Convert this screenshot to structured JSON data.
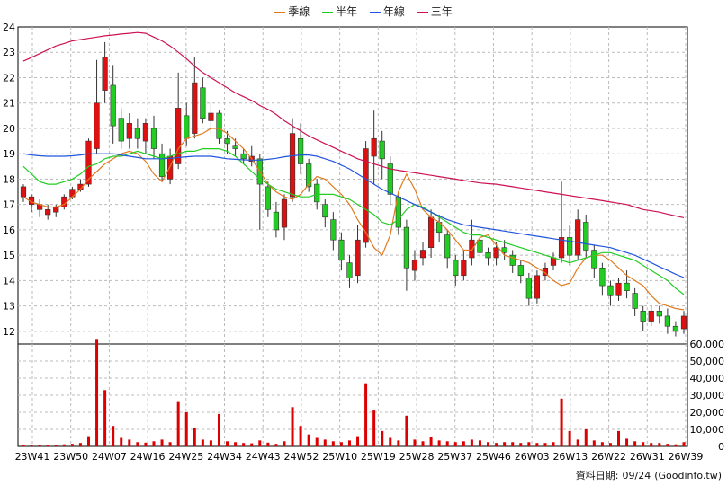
{
  "legend": [
    {
      "name": "季線",
      "color": "#e07a20"
    },
    {
      "name": "半年",
      "color": "#22cc22"
    },
    {
      "name": "年線",
      "color": "#2255dd"
    },
    {
      "name": "三年",
      "color": "#cc1155"
    }
  ],
  "footer": {
    "label": "資料日期:",
    "date": "09/24",
    "source": "(Goodinfo.tw)"
  },
  "chart_data": [
    {
      "type": "line",
      "title": "",
      "xlabel": "",
      "ylabel": "",
      "ylim": [
        11.5,
        24
      ],
      "grid": true,
      "legend_position": "top-center",
      "y_ticks": [
        12,
        13,
        14,
        15,
        16,
        17,
        18,
        19,
        20,
        21,
        22,
        23,
        24
      ],
      "x_ticks": [
        "23W41",
        "23W50",
        "24W07",
        "24W16",
        "24W25",
        "24W34",
        "24W43",
        "24W52",
        "25W10",
        "25W19",
        "25W28",
        "25W37",
        "25W46",
        "26W03",
        "26W13",
        "26W22",
        "26W31",
        "26W39"
      ],
      "series": [
        {
          "name": "季線",
          "color": "#e07a20",
          "values": [
            17.3,
            17.1,
            17.0,
            16.9,
            16.9,
            17.0,
            17.3,
            17.6,
            18.0,
            18.3,
            18.6,
            18.8,
            19.0,
            19.1,
            19.0,
            18.7,
            18.2,
            17.9,
            18.5,
            19.2,
            19.6,
            19.7,
            19.8,
            20.0,
            20.0,
            19.8,
            19.5,
            19.2,
            18.8,
            18.3,
            17.8,
            17.5,
            17.3,
            17.2,
            17.4,
            17.8,
            18.1,
            18.0,
            17.7,
            17.4,
            17.0,
            16.4,
            15.9,
            15.3,
            15.0,
            15.8,
            17.5,
            18.2,
            17.6,
            16.8,
            16.5,
            16.3,
            16.0,
            15.6,
            15.2,
            15.2,
            15.7,
            15.8,
            15.4,
            15.0,
            14.9,
            14.8,
            14.7,
            14.5,
            14.3,
            14.0,
            13.8,
            13.9,
            14.5,
            14.9,
            15.0,
            15.0,
            14.8,
            14.5,
            14.2,
            14.0,
            13.8,
            13.4,
            13.1,
            13.0,
            12.9,
            12.85
          ]
        },
        {
          "name": "半年",
          "color": "#22cc22",
          "values": [
            18.5,
            18.2,
            17.9,
            17.8,
            17.8,
            17.9,
            18.0,
            18.2,
            18.5,
            18.6,
            18.8,
            18.9,
            18.9,
            19.0,
            19.1,
            19.0,
            18.9,
            18.8,
            18.9,
            19.0,
            19.1,
            19.1,
            19.2,
            19.2,
            19.2,
            19.1,
            18.9,
            18.6,
            18.3,
            18.0,
            17.8,
            17.6,
            17.5,
            17.4,
            17.3,
            17.3,
            17.4,
            17.4,
            17.4,
            17.3,
            17.2,
            17.0,
            16.8,
            16.6,
            16.3,
            16.2,
            16.4,
            16.8,
            17.0,
            16.9,
            16.7,
            16.5,
            16.3,
            16.1,
            15.9,
            15.8,
            15.8,
            15.7,
            15.6,
            15.5,
            15.4,
            15.3,
            15.2,
            15.1,
            15.0,
            14.9,
            14.8,
            14.7,
            14.8,
            14.9,
            15.0,
            15.1,
            15.1,
            15.0,
            14.9,
            14.8,
            14.6,
            14.4,
            14.2,
            14.0,
            13.7,
            13.45
          ]
        },
        {
          "name": "年線",
          "color": "#2255dd",
          "values": [
            19.0,
            18.95,
            18.92,
            18.9,
            18.9,
            18.9,
            18.92,
            18.95,
            19.0,
            19.0,
            19.0,
            19.0,
            18.95,
            18.9,
            18.85,
            18.8,
            18.8,
            18.8,
            18.82,
            18.85,
            18.88,
            18.9,
            18.9,
            18.9,
            18.85,
            18.8,
            18.78,
            18.76,
            18.75,
            18.75,
            18.78,
            18.82,
            18.88,
            18.92,
            18.95,
            18.95,
            18.9,
            18.8,
            18.7,
            18.55,
            18.4,
            18.2,
            18.0,
            17.8,
            17.6,
            17.45,
            17.3,
            17.15,
            17.0,
            16.85,
            16.7,
            16.55,
            16.4,
            16.3,
            16.2,
            16.15,
            16.1,
            16.05,
            16.0,
            15.95,
            15.9,
            15.85,
            15.8,
            15.75,
            15.7,
            15.65,
            15.6,
            15.55,
            15.5,
            15.45,
            15.4,
            15.35,
            15.3,
            15.2,
            15.1,
            15.0,
            14.85,
            14.7,
            14.55,
            14.4,
            14.25,
            14.12
          ]
        },
        {
          "name": "三年",
          "color": "#cc1155",
          "values": [
            22.65,
            22.8,
            22.95,
            23.1,
            23.25,
            23.35,
            23.45,
            23.5,
            23.55,
            23.6,
            23.65,
            23.68,
            23.72,
            23.75,
            23.78,
            23.75,
            23.6,
            23.45,
            23.25,
            23.0,
            22.75,
            22.45,
            22.2,
            22.0,
            21.8,
            21.6,
            21.4,
            21.25,
            21.1,
            20.9,
            20.75,
            20.55,
            20.3,
            20.1,
            19.9,
            19.7,
            19.55,
            19.4,
            19.25,
            19.1,
            18.95,
            18.8,
            18.7,
            18.6,
            18.5,
            18.4,
            18.35,
            18.3,
            18.25,
            18.2,
            18.15,
            18.1,
            18.05,
            18.0,
            17.95,
            17.9,
            17.85,
            17.82,
            17.8,
            17.75,
            17.7,
            17.65,
            17.6,
            17.55,
            17.5,
            17.45,
            17.4,
            17.35,
            17.3,
            17.25,
            17.2,
            17.15,
            17.1,
            17.05,
            17.0,
            16.9,
            16.8,
            16.75,
            16.7,
            16.62,
            16.55,
            16.48
          ]
        }
      ],
      "candles": [
        [
          17.3,
          17.7,
          17.8,
          17.1
        ],
        [
          17.0,
          17.3,
          17.4,
          16.7
        ],
        [
          16.8,
          17.0,
          17.2,
          16.5
        ],
        [
          16.6,
          16.8,
          17.0,
          16.4
        ],
        [
          16.7,
          16.9,
          17.0,
          16.5
        ],
        [
          16.9,
          17.3,
          17.4,
          16.8
        ],
        [
          17.3,
          17.6,
          17.7,
          17.2
        ],
        [
          17.6,
          17.8,
          18.0,
          17.5
        ],
        [
          17.8,
          19.5,
          19.6,
          17.7
        ],
        [
          19.2,
          21.0,
          22.7,
          19.0
        ],
        [
          21.5,
          22.8,
          23.4,
          21.0
        ],
        [
          21.7,
          20.1,
          22.5,
          19.4
        ],
        [
          20.4,
          19.5,
          20.8,
          19.2
        ],
        [
          19.6,
          20.2,
          20.6,
          19.2
        ],
        [
          20.0,
          19.6,
          20.4,
          19.2
        ],
        [
          19.5,
          20.2,
          20.4,
          19.0
        ],
        [
          20.0,
          19.2,
          20.5,
          18.8
        ],
        [
          19.0,
          18.1,
          19.4,
          17.9
        ],
        [
          18.0,
          18.9,
          19.2,
          17.8
        ],
        [
          18.6,
          20.8,
          22.2,
          18.4
        ],
        [
          20.5,
          19.6,
          21.0,
          19.3
        ],
        [
          19.8,
          21.8,
          22.8,
          19.6
        ],
        [
          21.6,
          20.4,
          22.0,
          20.2
        ],
        [
          20.3,
          20.6,
          21.0,
          19.8
        ],
        [
          20.6,
          19.6,
          20.7,
          19.4
        ],
        [
          19.6,
          19.4,
          19.9,
          19.0
        ],
        [
          19.3,
          19.2,
          19.6,
          18.9
        ],
        [
          19.0,
          18.8,
          19.2,
          18.6
        ],
        [
          18.7,
          18.9,
          19.3,
          18.5
        ],
        [
          18.8,
          17.8,
          19.0,
          16.0
        ],
        [
          17.7,
          16.8,
          17.9,
          16.5
        ],
        [
          16.7,
          16.0,
          17.1,
          15.7
        ],
        [
          16.1,
          17.2,
          17.4,
          15.6
        ],
        [
          17.3,
          19.8,
          20.4,
          17.1
        ],
        [
          19.6,
          18.6,
          20.2,
          18.2
        ],
        [
          18.6,
          17.7,
          18.8,
          17.5
        ],
        [
          17.8,
          17.1,
          18.0,
          16.8
        ],
        [
          17.0,
          16.5,
          17.2,
          16.1
        ],
        [
          16.4,
          15.6,
          16.7,
          15.2
        ],
        [
          15.6,
          14.8,
          15.9,
          14.4
        ],
        [
          14.7,
          14.1,
          15.0,
          13.7
        ],
        [
          14.2,
          15.6,
          16.2,
          13.9
        ],
        [
          15.5,
          19.2,
          19.5,
          15.3
        ],
        [
          18.9,
          19.6,
          20.7,
          17.8
        ],
        [
          19.5,
          18.8,
          19.9,
          18.0
        ],
        [
          18.6,
          17.4,
          18.9,
          17.0
        ],
        [
          17.3,
          16.1,
          17.5,
          15.8
        ],
        [
          16.1,
          14.5,
          16.4,
          13.6
        ],
        [
          14.4,
          14.8,
          15.2,
          14.0
        ],
        [
          14.9,
          15.2,
          15.5,
          14.6
        ],
        [
          15.3,
          16.5,
          16.8,
          14.9
        ],
        [
          16.3,
          15.9,
          16.6,
          15.5
        ],
        [
          15.8,
          14.9,
          16.0,
          14.5
        ],
        [
          14.8,
          14.2,
          15.0,
          13.8
        ],
        [
          14.2,
          14.8,
          15.2,
          14.0
        ],
        [
          14.9,
          15.6,
          16.4,
          14.6
        ],
        [
          15.6,
          15.1,
          15.9,
          14.8
        ],
        [
          15.1,
          14.9,
          15.3,
          14.6
        ],
        [
          14.9,
          15.3,
          15.5,
          14.6
        ],
        [
          15.3,
          15.1,
          15.6,
          14.8
        ],
        [
          15.0,
          14.6,
          15.2,
          14.3
        ],
        [
          14.6,
          14.2,
          14.8,
          13.9
        ],
        [
          14.1,
          13.3,
          14.3,
          13.0
        ],
        [
          13.3,
          14.2,
          14.4,
          13.1
        ],
        [
          14.2,
          14.5,
          14.7,
          14.0
        ],
        [
          14.6,
          14.9,
          15.1,
          14.4
        ],
        [
          14.9,
          15.7,
          17.9,
          14.7
        ],
        [
          15.7,
          15.0,
          16.2,
          14.6
        ],
        [
          15.0,
          16.4,
          16.8,
          14.8
        ],
        [
          16.3,
          15.2,
          16.6,
          14.9
        ],
        [
          15.2,
          14.5,
          15.4,
          14.1
        ],
        [
          14.5,
          13.8,
          14.7,
          13.4
        ],
        [
          13.8,
          13.4,
          14.0,
          13.0
        ],
        [
          13.4,
          13.9,
          14.1,
          13.2
        ],
        [
          13.9,
          13.6,
          14.4,
          13.3
        ],
        [
          13.5,
          12.9,
          13.7,
          12.6
        ],
        [
          12.8,
          12.4,
          13.0,
          12.0
        ],
        [
          12.4,
          12.8,
          13.0,
          12.2
        ],
        [
          12.8,
          12.6,
          13.0,
          12.3
        ],
        [
          12.6,
          12.2,
          12.9,
          11.9
        ],
        [
          12.2,
          12.0,
          12.4,
          11.8
        ],
        [
          12.1,
          12.6,
          12.8,
          11.9
        ]
      ]
    },
    {
      "type": "bar",
      "title": "",
      "ylim": [
        0,
        60000
      ],
      "y_ticks": [
        0,
        10000,
        20000,
        30000,
        40000,
        50000,
        60000
      ],
      "y_tick_labels": [
        "0",
        "10,000",
        "20,000",
        "30,000",
        "40,000",
        "50,000",
        "60,000"
      ],
      "series": [
        {
          "name": "成交量",
          "color": "#dd0000",
          "values": [
            800,
            600,
            700,
            500,
            900,
            1200,
            1500,
            2000,
            6000,
            63000,
            33000,
            12000,
            5000,
            4000,
            2500,
            2200,
            3000,
            4000,
            2500,
            26000,
            20000,
            11000,
            4000,
            3500,
            19000,
            3000,
            2500,
            2000,
            1800,
            3500,
            2200,
            1500,
            3000,
            23000,
            12000,
            7000,
            5000,
            4000,
            3000,
            2500,
            3500,
            6000,
            37000,
            21000,
            9000,
            5000,
            3500,
            18000,
            4000,
            3000,
            5500,
            3500,
            3000,
            2500,
            3000,
            4000,
            3500,
            2500,
            2000,
            2500,
            2500,
            2000,
            2500,
            2000,
            2000,
            2500,
            28000,
            9000,
            4000,
            10000,
            3500,
            2500,
            2000,
            9000,
            4500,
            3000,
            2500,
            2000,
            2000,
            1500,
            1200,
            2500
          ]
        }
      ]
    }
  ]
}
